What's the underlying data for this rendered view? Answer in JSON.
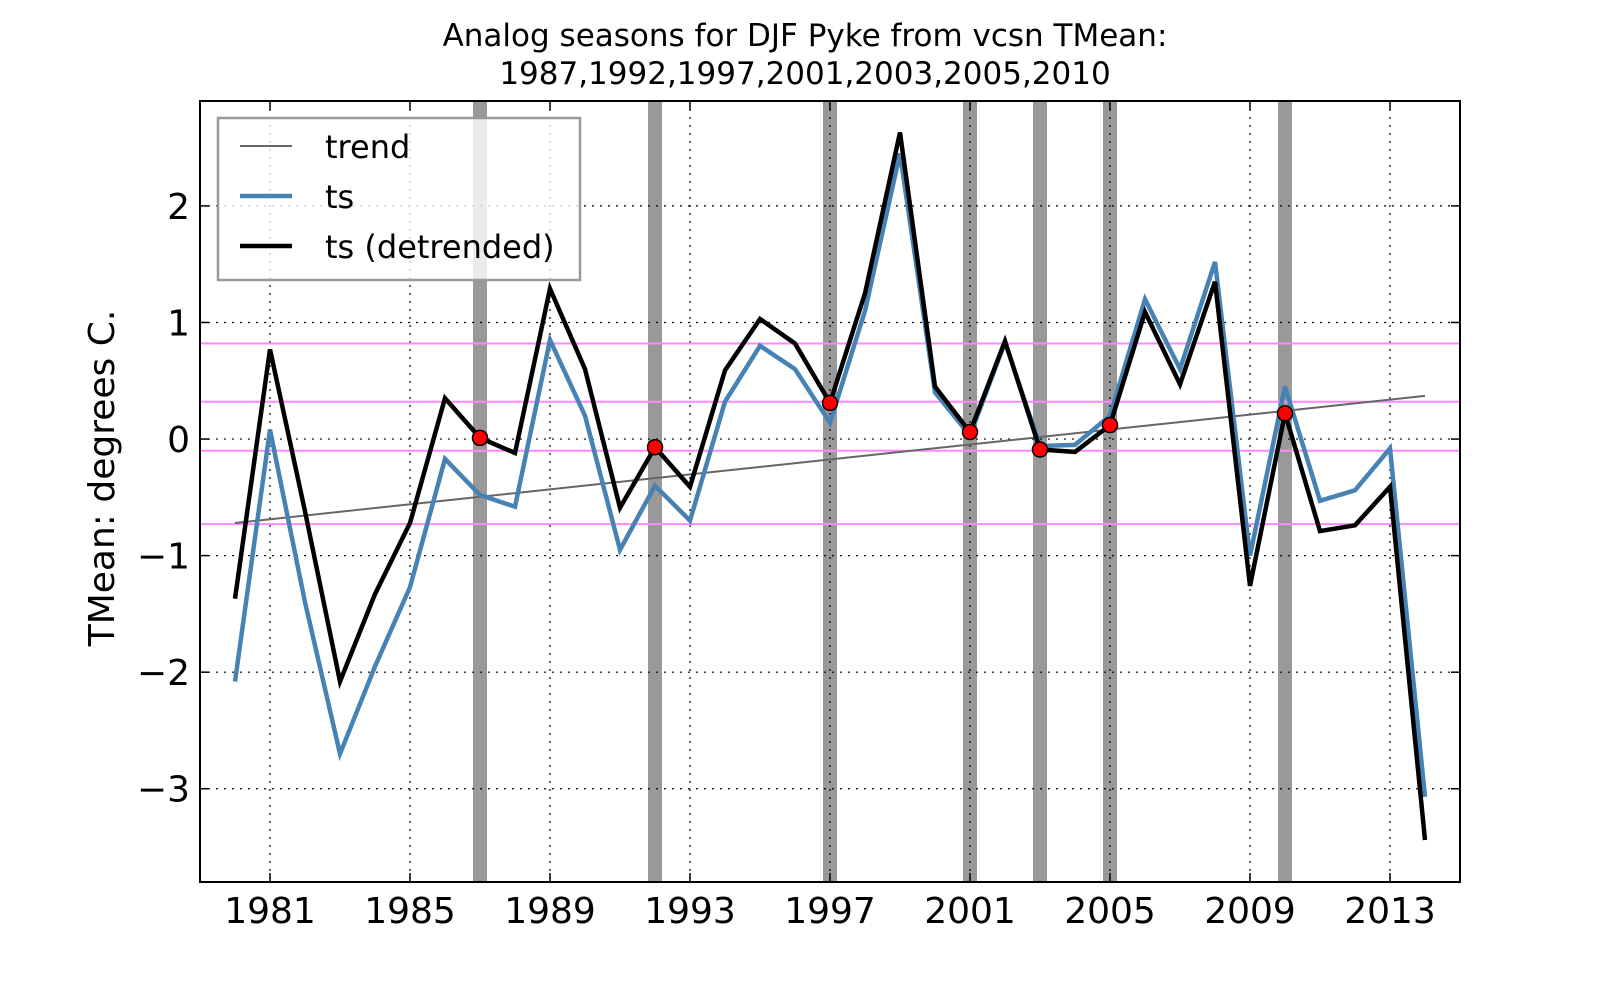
{
  "chart_data": {
    "type": "line",
    "title": "Analog seasons for DJF Pyke from vcsn TMean:",
    "subtitle": "1987,1992,1997,2001,2003,2005,2010",
    "ylabel": "TMean: degrees C.",
    "xlabel": "",
    "xlim": [
      1979,
      2015
    ],
    "ylim": [
      -3.8,
      2.9
    ],
    "xticks": [
      1981,
      1985,
      1989,
      1993,
      1997,
      2001,
      2005,
      2009,
      2013
    ],
    "xtick_labels": [
      "1981",
      "1985",
      "1989",
      "1993",
      "1997",
      "2001",
      "2005",
      "2009",
      "2013"
    ],
    "yticks": [
      -3,
      -2,
      -1,
      0,
      1,
      2
    ],
    "ytick_labels": [
      "−3",
      "−2",
      "−1",
      "0",
      "1",
      "2"
    ],
    "grid": true,
    "legend_position": "top-left",
    "analog_years": [
      1987,
      1992,
      1997,
      2001,
      2003,
      2005,
      2010
    ],
    "hlines": [
      0.82,
      0.32,
      -0.1,
      -0.73
    ],
    "x": [
      1980,
      1981,
      1982,
      1983,
      1984,
      1985,
      1986,
      1987,
      1988,
      1989,
      1990,
      1991,
      1992,
      1993,
      1994,
      1995,
      1996,
      1997,
      1998,
      1999,
      2000,
      2001,
      2002,
      2003,
      2004,
      2005,
      2006,
      2007,
      2008,
      2009,
      2010,
      2011,
      2012,
      2013,
      2014
    ],
    "series": [
      {
        "name": "trend",
        "color": "#666666",
        "x": [
          1980,
          2014
        ],
        "values": [
          -0.72,
          0.37
        ]
      },
      {
        "name": "ts",
        "color": "#4682b4",
        "values": [
          -2.08,
          0.08,
          -1.4,
          -2.7,
          -1.95,
          -1.27,
          -0.17,
          -0.48,
          -0.58,
          0.85,
          0.2,
          -0.95,
          -0.4,
          -0.7,
          0.32,
          0.8,
          0.6,
          0.14,
          1.1,
          2.45,
          0.4,
          0.03,
          0.83,
          -0.06,
          -0.05,
          0.2,
          1.2,
          0.6,
          1.52,
          -1.0,
          0.45,
          -0.53,
          -0.44,
          -0.08,
          -3.07
        ]
      },
      {
        "name": "ts (detrended)",
        "color": "#000000",
        "values": [
          -1.37,
          0.77,
          -0.62,
          -2.08,
          -1.33,
          -0.72,
          0.35,
          0.01,
          -0.12,
          1.29,
          0.6,
          -0.59,
          -0.07,
          -0.41,
          0.59,
          1.03,
          0.82,
          0.31,
          1.25,
          2.63,
          0.45,
          0.06,
          0.84,
          -0.09,
          -0.11,
          0.12,
          1.09,
          0.47,
          1.35,
          -1.26,
          0.22,
          -0.79,
          -0.74,
          -0.41,
          -3.44
        ]
      }
    ],
    "analog_markers": {
      "x": [
        1987,
        1992,
        1997,
        2001,
        2003,
        2005,
        2010
      ],
      "values": [
        0.01,
        -0.07,
        0.31,
        0.06,
        -0.09,
        0.12,
        0.22
      ],
      "color": "#ff0000"
    }
  }
}
